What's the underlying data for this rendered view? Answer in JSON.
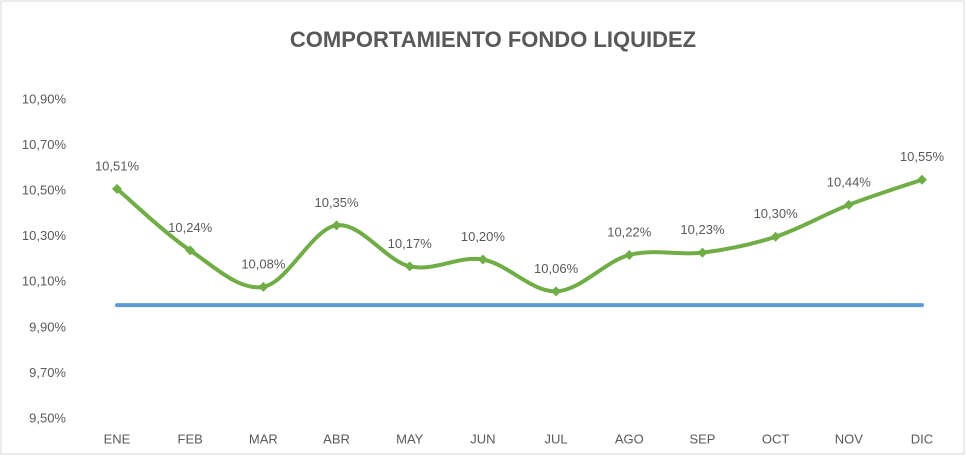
{
  "chart_data": {
    "type": "line",
    "title": "COMPORTAMIENTO  FONDO LIQUIDEZ",
    "categories": [
      "ENE",
      "FEB",
      "MAR",
      "ABR",
      "MAY",
      "JUN",
      "JUL",
      "AGO",
      "SEP",
      "OCT",
      "NOV",
      "DIC"
    ],
    "series": [
      {
        "color": "#5b9bd5",
        "smooth": false,
        "markers": false,
        "values": [
          10,
          10,
          10,
          10,
          10,
          10,
          10,
          10,
          10,
          10,
          10,
          10
        ]
      },
      {
        "color": "#70ad47",
        "smooth": true,
        "markers": true,
        "values": [
          10.51,
          10.24,
          10.08,
          10.35,
          10.17,
          10.2,
          10.06,
          10.22,
          10.23,
          10.3,
          10.44,
          10.55
        ],
        "value_labels": [
          "10,51%",
          "10,24%",
          "10,08%",
          "10,35%",
          "10,17%",
          "10,20%",
          "10,06%",
          "10,22%",
          "10,23%",
          "10,30%",
          "10,44%",
          "10,55%"
        ]
      }
    ],
    "ylim": [
      9.5,
      10.9
    ],
    "yticks": [
      {
        "value": 9.5,
        "label": "9,50%"
      },
      {
        "value": 9.7,
        "label": "9,70%"
      },
      {
        "value": 9.9,
        "label": "9,90%"
      },
      {
        "value": 10.1,
        "label": "10,10%"
      },
      {
        "value": 10.3,
        "label": "10,30%"
      },
      {
        "value": 10.5,
        "label": "10,50%"
      },
      {
        "value": 10.7,
        "label": "10,70%"
      },
      {
        "value": 10.9,
        "label": "10,90%"
      }
    ],
    "grid": false
  }
}
